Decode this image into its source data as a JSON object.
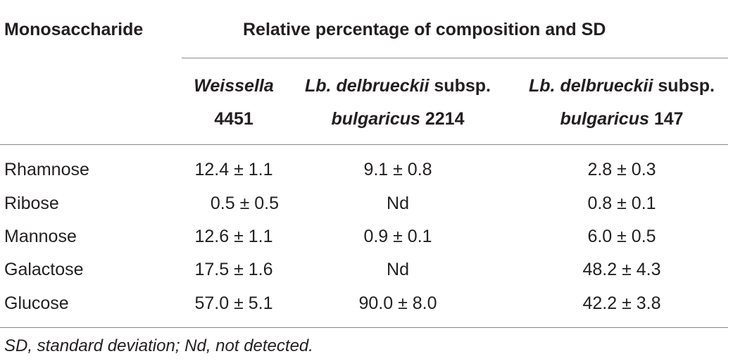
{
  "table": {
    "stub_header": "Monosaccharide",
    "spanner_header": "Relative percentage of composition and SD",
    "columns": [
      {
        "line1_italic": "Weissella",
        "line1_rest": "",
        "line2_italic": "",
        "line2_rest": "4451"
      },
      {
        "line1_italic": "Lb. delbrueckii",
        "line1_rest": " subsp.",
        "line2_italic": "bulgaricus",
        "line2_rest": " 2214"
      },
      {
        "line1_italic": "Lb. delbrueckii",
        "line1_rest": " subsp.",
        "line2_italic": "bulgaricus",
        "line2_rest": " 147"
      }
    ],
    "rows": [
      {
        "name": "Rhamnose",
        "values": [
          "12.4 ± 1.1",
          "9.1 ± 0.8",
          "2.8 ± 0.3"
        ]
      },
      {
        "name": "Ribose",
        "values": [
          "0.5 ± 0.5",
          "Nd",
          "0.8 ± 0.1"
        ]
      },
      {
        "name": "Mannose",
        "values": [
          "12.6 ± 1.1",
          "0.9 ± 0.1",
          "6.0 ± 0.5"
        ]
      },
      {
        "name": "Galactose",
        "values": [
          "17.5 ± 1.6",
          "Nd",
          "48.2 ± 4.3"
        ]
      },
      {
        "name": "Glucose",
        "values": [
          "57.0 ± 5.1",
          "90.0 ± 8.0",
          "42.2 ± 3.8"
        ]
      }
    ],
    "footnote": "SD, standard deviation; Nd, not detected."
  }
}
